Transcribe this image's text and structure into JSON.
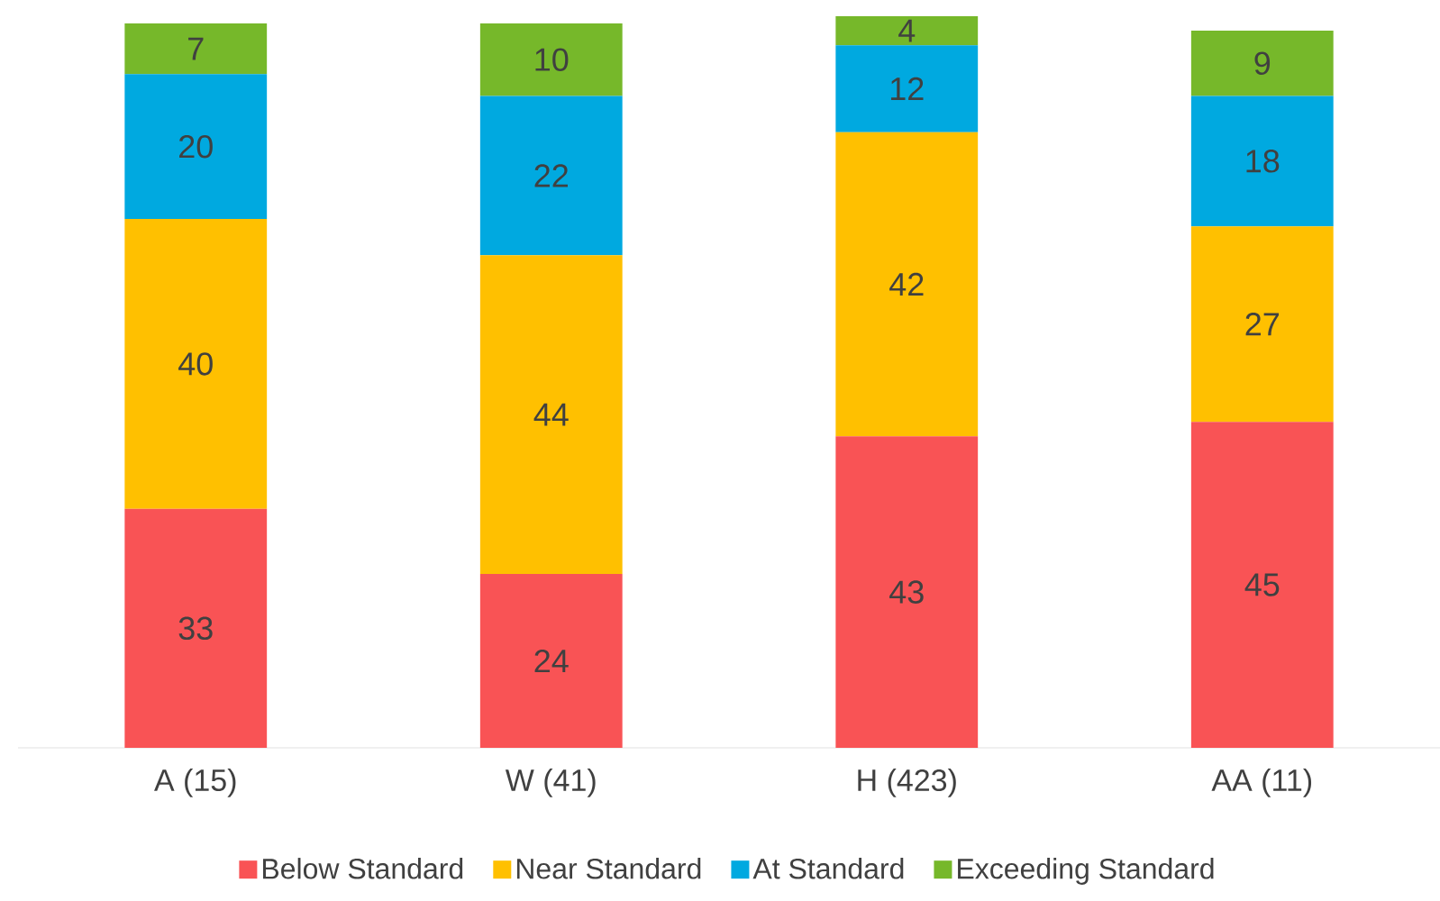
{
  "chart_data": {
    "type": "bar",
    "stacked": true,
    "data_labels": true,
    "legend": "bottom",
    "categories": [
      "A (15)",
      "W (41)",
      "H (423)",
      "AA (11)"
    ],
    "series": [
      {
        "name": "Below Standard",
        "color": "#f95355",
        "values": [
          33,
          24,
          43,
          45
        ]
      },
      {
        "name": "Near Standard",
        "color": "#ffc000",
        "values": [
          40,
          44,
          42,
          27
        ]
      },
      {
        "name": "At Standard",
        "color": "#00a9e0",
        "values": [
          20,
          22,
          12,
          18
        ]
      },
      {
        "name": "Exceeding Standard",
        "color": "#76b82a",
        "values": [
          7,
          10,
          4,
          9
        ]
      }
    ]
  }
}
